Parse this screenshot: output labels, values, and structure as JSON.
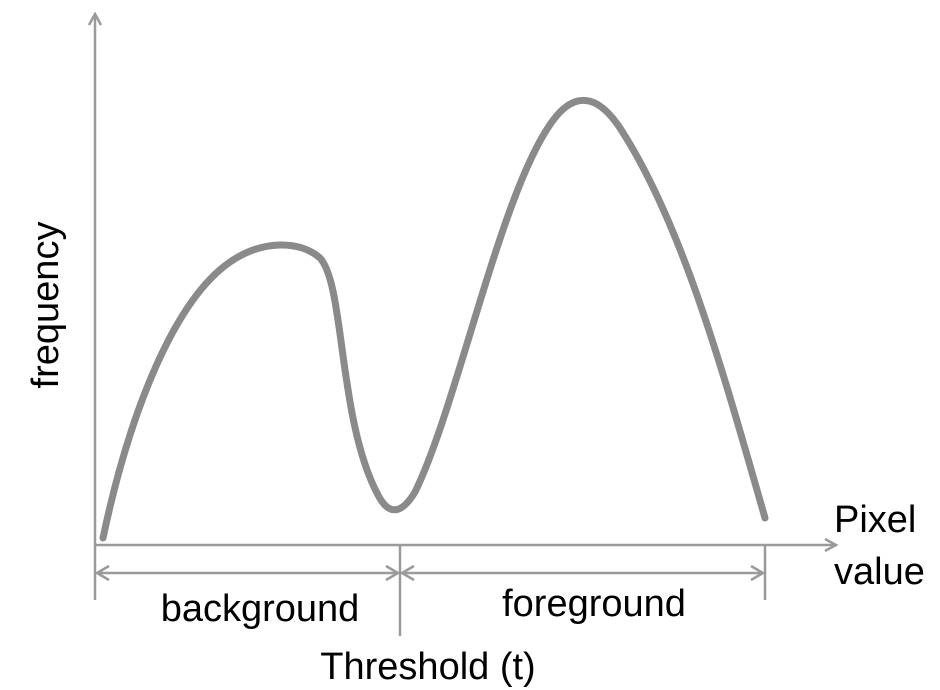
{
  "labels": {
    "y_axis": "frequency",
    "x_axis_line1": "Pixel",
    "x_axis_line2": "value",
    "background": "background",
    "foreground": "foreground",
    "threshold": "Threshold (t)"
  },
  "colors": {
    "curve": "#8a8a8a",
    "axis": "#9a9a9a",
    "text": "#000000",
    "background": "#ffffff"
  }
}
